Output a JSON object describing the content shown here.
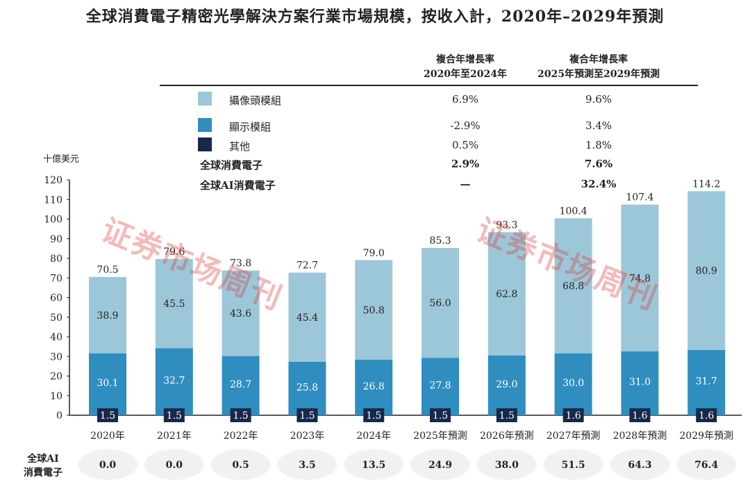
{
  "title": "全球消費電子精密光學解決方案行業市場規模，按收入計，2020年–2029年預測",
  "cagr_table": {
    "headers": [
      "複合年增長率\n2020年至2024年",
      "複合年增長率\n2025年預測至2029年預測"
    ],
    "header_lines": [
      [
        "複合年增長率",
        "2020年至2024年"
      ],
      [
        "複合年增長率",
        "2025年預測至2029年預測"
      ]
    ],
    "rows": [
      {
        "label": "攝像頭模組",
        "c1": "6.9%",
        "c2": "9.6%",
        "color": "#9cc7d8",
        "bold": false
      },
      {
        "label": "顯示模組",
        "c1": "-2.9%",
        "c2": "3.4%",
        "color": "#2f8dbf",
        "bold": false
      },
      {
        "label": "其他",
        "c1": "0.5%",
        "c2": "1.8%",
        "color": "#17294a",
        "bold": false
      },
      {
        "label": "全球消費電子",
        "c1": "2.9%",
        "c2": "7.6%",
        "bold": true
      },
      {
        "label": "全球AI消費電子",
        "c1": "—",
        "c2": "32.4%",
        "bold": true
      }
    ]
  },
  "watermark": "证券市场周刊",
  "chart_data": {
    "type": "bar",
    "stacked": true,
    "ylabel": "十億美元",
    "ylim": [
      0,
      120
    ],
    "yticks": [
      0,
      10,
      20,
      30,
      40,
      50,
      60,
      70,
      80,
      90,
      100,
      110,
      120
    ],
    "categories": [
      "2020年",
      "2021年",
      "2022年",
      "2023年",
      "2024年",
      "2025年預測",
      "2026年預測",
      "2027年預測",
      "2028年預測",
      "2029年預測"
    ],
    "series": [
      {
        "name": "其他",
        "color": "#17294a",
        "values": [
          1.5,
          1.5,
          1.5,
          1.5,
          1.5,
          1.5,
          1.5,
          1.6,
          1.6,
          1.6
        ]
      },
      {
        "name": "顯示模組",
        "color": "#2f8dbf",
        "values": [
          30.1,
          32.7,
          28.7,
          25.8,
          26.8,
          27.8,
          29.0,
          30.0,
          31.0,
          31.7
        ]
      },
      {
        "name": "攝像頭模組",
        "color": "#9cc7d8",
        "values": [
          38.9,
          45.5,
          43.6,
          45.4,
          50.8,
          56.0,
          62.8,
          68.8,
          74.8,
          80.9
        ]
      }
    ],
    "totals": [
      70.5,
      79.6,
      73.8,
      72.7,
      79.0,
      85.3,
      93.3,
      100.4,
      107.4,
      114.2
    ],
    "ai_row": {
      "label_lines": [
        "全球AI",
        "消費電子"
      ],
      "values": [
        0.0,
        0.0,
        0.5,
        3.5,
        13.5,
        24.9,
        38.0,
        51.5,
        64.3,
        76.4
      ]
    }
  }
}
